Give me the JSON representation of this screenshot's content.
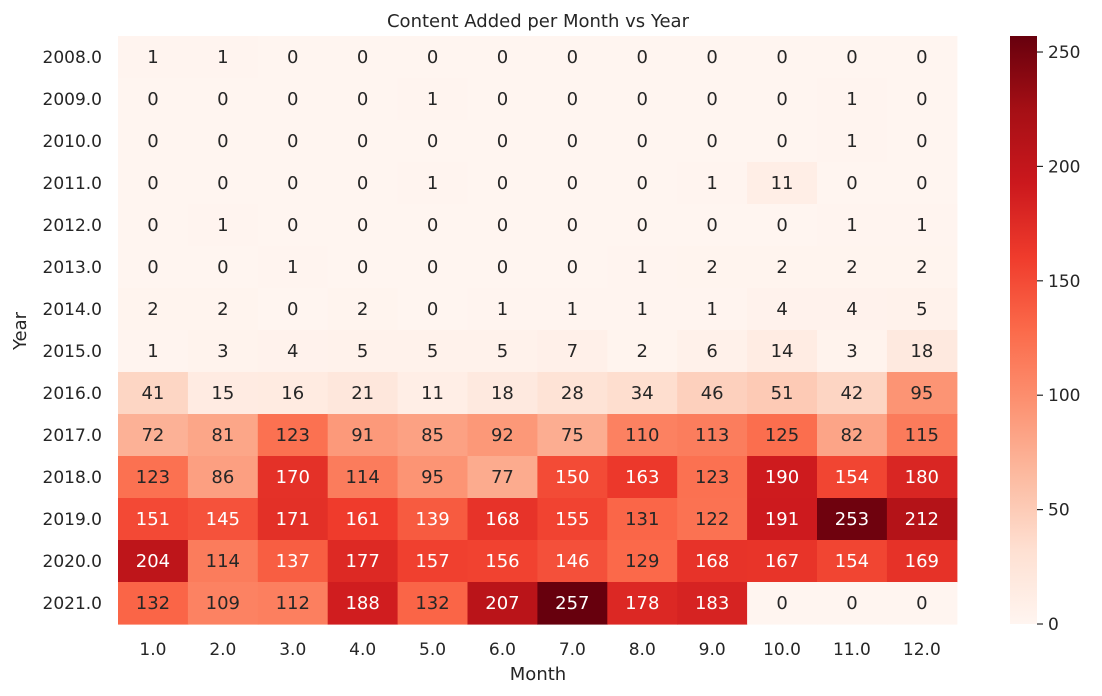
{
  "chart_data": {
    "type": "heatmap",
    "title": "Content Added per Month vs Year",
    "xlabel": "Month",
    "ylabel": "Year",
    "x_categories": [
      "1.0",
      "2.0",
      "3.0",
      "4.0",
      "5.0",
      "6.0",
      "7.0",
      "8.0",
      "9.0",
      "10.0",
      "11.0",
      "12.0"
    ],
    "y_categories": [
      "2008.0",
      "2009.0",
      "2010.0",
      "2011.0",
      "2012.0",
      "2013.0",
      "2014.0",
      "2015.0",
      "2016.0",
      "2017.0",
      "2018.0",
      "2019.0",
      "2020.0",
      "2021.0"
    ],
    "values": [
      [
        1,
        1,
        0,
        0,
        0,
        0,
        0,
        0,
        0,
        0,
        0,
        0
      ],
      [
        0,
        0,
        0,
        0,
        1,
        0,
        0,
        0,
        0,
        0,
        1,
        0
      ],
      [
        0,
        0,
        0,
        0,
        0,
        0,
        0,
        0,
        0,
        0,
        1,
        0
      ],
      [
        0,
        0,
        0,
        0,
        1,
        0,
        0,
        0,
        1,
        11,
        0,
        0
      ],
      [
        0,
        1,
        0,
        0,
        0,
        0,
        0,
        0,
        0,
        0,
        1,
        1
      ],
      [
        0,
        0,
        1,
        0,
        0,
        0,
        0,
        1,
        2,
        2,
        2,
        2
      ],
      [
        2,
        2,
        0,
        2,
        0,
        1,
        1,
        1,
        1,
        4,
        4,
        5
      ],
      [
        1,
        3,
        4,
        5,
        5,
        5,
        7,
        2,
        6,
        14,
        3,
        18
      ],
      [
        41,
        15,
        16,
        21,
        11,
        18,
        28,
        34,
        46,
        51,
        42,
        95
      ],
      [
        72,
        81,
        123,
        91,
        85,
        92,
        75,
        110,
        113,
        125,
        82,
        115
      ],
      [
        123,
        86,
        170,
        114,
        95,
        77,
        150,
        163,
        123,
        190,
        154,
        180
      ],
      [
        151,
        145,
        171,
        161,
        139,
        168,
        155,
        131,
        122,
        191,
        253,
        212
      ],
      [
        204,
        114,
        137,
        177,
        157,
        156,
        146,
        129,
        168,
        167,
        154,
        169
      ],
      [
        132,
        109,
        112,
        188,
        132,
        207,
        257,
        178,
        183,
        0,
        0,
        0
      ]
    ],
    "colorbar": {
      "min": 0,
      "max": 257,
      "ticks": [
        0,
        50,
        100,
        150,
        200,
        250
      ],
      "colormap": "Reds",
      "colors": [
        "#fff5f0",
        "#fee0d2",
        "#fcbba1",
        "#fc9272",
        "#fb6a4a",
        "#ef3b2c",
        "#cb181d",
        "#a50f15",
        "#67000d"
      ]
    }
  }
}
